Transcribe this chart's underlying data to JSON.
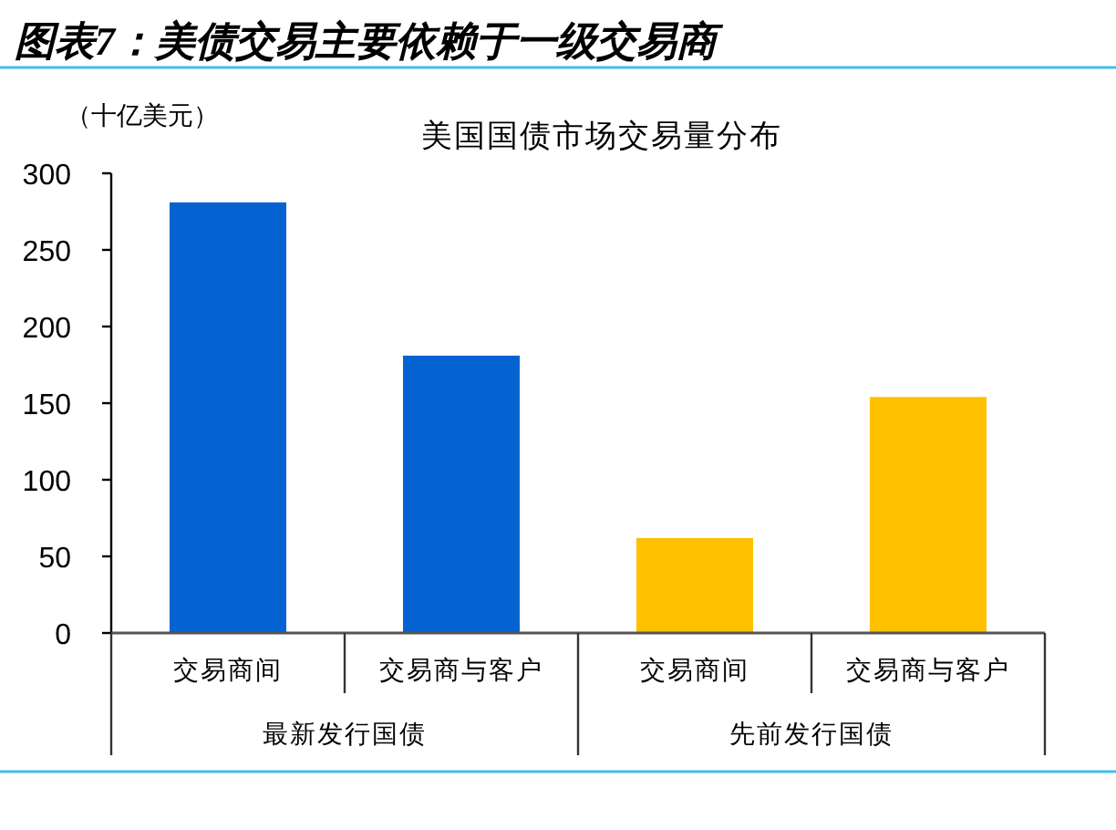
{
  "chart_data": {
    "type": "bar",
    "title": "图表7：美债交易主要依赖于一级交易商",
    "subtitle": "美国国债市场交易量分布",
    "ylabel": "（十亿美元）",
    "categories": [
      "交易商间",
      "交易商与客户",
      "交易商间",
      "交易商与客户"
    ],
    "values": [
      281,
      181,
      62,
      154
    ],
    "colors": [
      "#0563d1",
      "#0563d1",
      "#ffc000",
      "#ffc000"
    ],
    "ylim": [
      0,
      300
    ],
    "yticks": [
      0,
      50,
      100,
      150,
      200,
      250,
      300
    ],
    "annotations": [
      "最新发行国债",
      "先前发行国债"
    ]
  }
}
